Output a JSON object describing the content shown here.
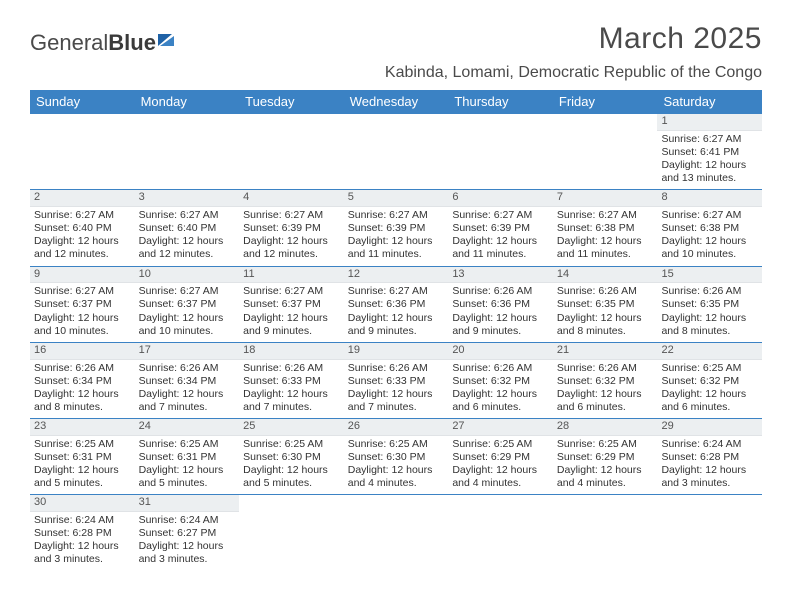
{
  "brand": {
    "part1": "General",
    "part2": "Blue"
  },
  "title": "March 2025",
  "location": "Kabinda, Lomami, Democratic Republic of the Congo",
  "colors": {
    "header_bg": "#3b82c4",
    "header_text": "#ffffff",
    "daynum_bg": "#eceff1",
    "text": "#333333",
    "row_border": "#3b82c4"
  },
  "day_names": [
    "Sunday",
    "Monday",
    "Tuesday",
    "Wednesday",
    "Thursday",
    "Friday",
    "Saturday"
  ],
  "weeks": [
    [
      null,
      null,
      null,
      null,
      null,
      null,
      {
        "n": "1",
        "sr": "Sunrise: 6:27 AM",
        "ss": "Sunset: 6:41 PM",
        "dl": "Daylight: 12 hours and 13 minutes."
      }
    ],
    [
      {
        "n": "2",
        "sr": "Sunrise: 6:27 AM",
        "ss": "Sunset: 6:40 PM",
        "dl": "Daylight: 12 hours and 12 minutes."
      },
      {
        "n": "3",
        "sr": "Sunrise: 6:27 AM",
        "ss": "Sunset: 6:40 PM",
        "dl": "Daylight: 12 hours and 12 minutes."
      },
      {
        "n": "4",
        "sr": "Sunrise: 6:27 AM",
        "ss": "Sunset: 6:39 PM",
        "dl": "Daylight: 12 hours and 12 minutes."
      },
      {
        "n": "5",
        "sr": "Sunrise: 6:27 AM",
        "ss": "Sunset: 6:39 PM",
        "dl": "Daylight: 12 hours and 11 minutes."
      },
      {
        "n": "6",
        "sr": "Sunrise: 6:27 AM",
        "ss": "Sunset: 6:39 PM",
        "dl": "Daylight: 12 hours and 11 minutes."
      },
      {
        "n": "7",
        "sr": "Sunrise: 6:27 AM",
        "ss": "Sunset: 6:38 PM",
        "dl": "Daylight: 12 hours and 11 minutes."
      },
      {
        "n": "8",
        "sr": "Sunrise: 6:27 AM",
        "ss": "Sunset: 6:38 PM",
        "dl": "Daylight: 12 hours and 10 minutes."
      }
    ],
    [
      {
        "n": "9",
        "sr": "Sunrise: 6:27 AM",
        "ss": "Sunset: 6:37 PM",
        "dl": "Daylight: 12 hours and 10 minutes."
      },
      {
        "n": "10",
        "sr": "Sunrise: 6:27 AM",
        "ss": "Sunset: 6:37 PM",
        "dl": "Daylight: 12 hours and 10 minutes."
      },
      {
        "n": "11",
        "sr": "Sunrise: 6:27 AM",
        "ss": "Sunset: 6:37 PM",
        "dl": "Daylight: 12 hours and 9 minutes."
      },
      {
        "n": "12",
        "sr": "Sunrise: 6:27 AM",
        "ss": "Sunset: 6:36 PM",
        "dl": "Daylight: 12 hours and 9 minutes."
      },
      {
        "n": "13",
        "sr": "Sunrise: 6:26 AM",
        "ss": "Sunset: 6:36 PM",
        "dl": "Daylight: 12 hours and 9 minutes."
      },
      {
        "n": "14",
        "sr": "Sunrise: 6:26 AM",
        "ss": "Sunset: 6:35 PM",
        "dl": "Daylight: 12 hours and 8 minutes."
      },
      {
        "n": "15",
        "sr": "Sunrise: 6:26 AM",
        "ss": "Sunset: 6:35 PM",
        "dl": "Daylight: 12 hours and 8 minutes."
      }
    ],
    [
      {
        "n": "16",
        "sr": "Sunrise: 6:26 AM",
        "ss": "Sunset: 6:34 PM",
        "dl": "Daylight: 12 hours and 8 minutes."
      },
      {
        "n": "17",
        "sr": "Sunrise: 6:26 AM",
        "ss": "Sunset: 6:34 PM",
        "dl": "Daylight: 12 hours and 7 minutes."
      },
      {
        "n": "18",
        "sr": "Sunrise: 6:26 AM",
        "ss": "Sunset: 6:33 PM",
        "dl": "Daylight: 12 hours and 7 minutes."
      },
      {
        "n": "19",
        "sr": "Sunrise: 6:26 AM",
        "ss": "Sunset: 6:33 PM",
        "dl": "Daylight: 12 hours and 7 minutes."
      },
      {
        "n": "20",
        "sr": "Sunrise: 6:26 AM",
        "ss": "Sunset: 6:32 PM",
        "dl": "Daylight: 12 hours and 6 minutes."
      },
      {
        "n": "21",
        "sr": "Sunrise: 6:26 AM",
        "ss": "Sunset: 6:32 PM",
        "dl": "Daylight: 12 hours and 6 minutes."
      },
      {
        "n": "22",
        "sr": "Sunrise: 6:25 AM",
        "ss": "Sunset: 6:32 PM",
        "dl": "Daylight: 12 hours and 6 minutes."
      }
    ],
    [
      {
        "n": "23",
        "sr": "Sunrise: 6:25 AM",
        "ss": "Sunset: 6:31 PM",
        "dl": "Daylight: 12 hours and 5 minutes."
      },
      {
        "n": "24",
        "sr": "Sunrise: 6:25 AM",
        "ss": "Sunset: 6:31 PM",
        "dl": "Daylight: 12 hours and 5 minutes."
      },
      {
        "n": "25",
        "sr": "Sunrise: 6:25 AM",
        "ss": "Sunset: 6:30 PM",
        "dl": "Daylight: 12 hours and 5 minutes."
      },
      {
        "n": "26",
        "sr": "Sunrise: 6:25 AM",
        "ss": "Sunset: 6:30 PM",
        "dl": "Daylight: 12 hours and 4 minutes."
      },
      {
        "n": "27",
        "sr": "Sunrise: 6:25 AM",
        "ss": "Sunset: 6:29 PM",
        "dl": "Daylight: 12 hours and 4 minutes."
      },
      {
        "n": "28",
        "sr": "Sunrise: 6:25 AM",
        "ss": "Sunset: 6:29 PM",
        "dl": "Daylight: 12 hours and 4 minutes."
      },
      {
        "n": "29",
        "sr": "Sunrise: 6:24 AM",
        "ss": "Sunset: 6:28 PM",
        "dl": "Daylight: 12 hours and 3 minutes."
      }
    ],
    [
      {
        "n": "30",
        "sr": "Sunrise: 6:24 AM",
        "ss": "Sunset: 6:28 PM",
        "dl": "Daylight: 12 hours and 3 minutes."
      },
      {
        "n": "31",
        "sr": "Sunrise: 6:24 AM",
        "ss": "Sunset: 6:27 PM",
        "dl": "Daylight: 12 hours and 3 minutes."
      },
      null,
      null,
      null,
      null,
      null
    ]
  ]
}
